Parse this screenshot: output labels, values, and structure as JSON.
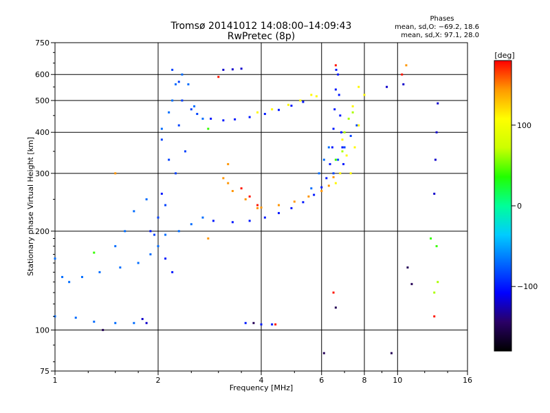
{
  "chart_data": {
    "type": "scatter",
    "title": "Tromsø 20141012 14:08:00–14:09:43",
    "subtitle": "RwPretec (8p)",
    "xlabel": "Frequency [MHz]",
    "ylabel": "Stationary phase Virtual Height [km]",
    "x_scale": "log",
    "y_scale": "log",
    "xlim": [
      1,
      16
    ],
    "ylim": [
      75,
      750
    ],
    "x_ticks": [
      1,
      2,
      4,
      6,
      8,
      10,
      16
    ],
    "x_tick_labels": [
      "1",
      "2",
      "4",
      "6",
      "8",
      "10",
      "16"
    ],
    "y_ticks": [
      75,
      100,
      200,
      300,
      400,
      500,
      600,
      750
    ],
    "y_tick_labels": [
      "75",
      "100",
      "200",
      "300",
      "400",
      "500",
      "600",
      "750"
    ],
    "grid": true,
    "legend": {
      "title": "Phases",
      "lines": [
        "mean, sd,O: −69.2, 18.6",
        "mean, sd,X:  97.1, 28.0"
      ],
      "placement": "top-right"
    },
    "colorbar": {
      "label": "[deg]",
      "range": [
        -180,
        180
      ],
      "ticks": [
        100,
        0,
        -100
      ],
      "tick_labels": [
        "100",
        "0",
        "−100"
      ],
      "colors": [
        "#000000",
        "#2a0066",
        "#0000ff",
        "#0066ff",
        "#00ccff",
        "#00ff99",
        "#22ff00",
        "#ccff00",
        "#ffff00",
        "#ff9900",
        "#ff0000"
      ]
    },
    "series": [
      {
        "phase": -150,
        "points": [
          [
            1.38,
            100
          ],
          [
            3.8,
            105
          ],
          [
            6.1,
            85
          ],
          [
            6.6,
            117
          ],
          [
            9.6,
            85
          ],
          [
            11.0,
            138
          ],
          [
            10.7,
            155
          ]
        ]
      },
      {
        "phase": -120,
        "points": [
          [
            1.8,
            108
          ],
          [
            1.85,
            105
          ],
          [
            3.1,
            620
          ],
          [
            3.3,
            622
          ],
          [
            3.5,
            625
          ],
          [
            9.3,
            550
          ],
          [
            10.4,
            560
          ],
          [
            13.1,
            490
          ],
          [
            13.0,
            400
          ],
          [
            12.9,
            330
          ],
          [
            12.8,
            260
          ]
        ]
      },
      {
        "phase": -100,
        "points": [
          [
            2.85,
            440
          ],
          [
            3.1,
            435
          ],
          [
            3.35,
            438
          ],
          [
            3.7,
            445
          ],
          [
            4.1,
            455
          ],
          [
            4.5,
            468
          ],
          [
            4.9,
            482
          ],
          [
            5.3,
            495
          ],
          [
            2.9,
            215
          ],
          [
            3.3,
            213
          ],
          [
            3.7,
            215
          ],
          [
            4.1,
            220
          ],
          [
            4.5,
            227
          ],
          [
            4.9,
            235
          ],
          [
            5.3,
            245
          ],
          [
            5.7,
            258
          ],
          [
            6.0,
            272
          ],
          [
            6.2,
            290
          ],
          [
            6.35,
            320
          ],
          [
            6.45,
            360
          ],
          [
            6.5,
            410
          ],
          [
            6.55,
            470
          ],
          [
            6.6,
            540
          ],
          [
            6.62,
            620
          ],
          [
            6.7,
            600
          ],
          [
            6.75,
            520
          ],
          [
            6.8,
            450
          ],
          [
            6.85,
            400
          ],
          [
            6.9,
            360
          ],
          [
            6.95,
            320
          ],
          [
            3.6,
            105
          ],
          [
            4.0,
            104
          ],
          [
            4.3,
            104
          ],
          [
            2.1,
            165
          ],
          [
            2.2,
            150
          ],
          [
            1.9,
            200
          ],
          [
            2.05,
            260
          ]
        ]
      },
      {
        "phase": -85,
        "points": [
          [
            2.2,
            620
          ],
          [
            2.3,
            570
          ],
          [
            2.35,
            500
          ],
          [
            2.5,
            470
          ],
          [
            2.6,
            455
          ],
          [
            2.05,
            380
          ],
          [
            2.15,
            330
          ],
          [
            2.25,
            300
          ],
          [
            2.1,
            240
          ],
          [
            2.0,
            220
          ],
          [
            1.95,
            195
          ],
          [
            2.3,
            420
          ],
          [
            2.4,
            350
          ],
          [
            6.5,
            300
          ],
          [
            6.7,
            330
          ],
          [
            7.0,
            360
          ],
          [
            7.3,
            390
          ],
          [
            7.6,
            420
          ]
        ]
      },
      {
        "phase": -70,
        "points": [
          [
            1.0,
            165
          ],
          [
            1.05,
            145
          ],
          [
            1.1,
            140
          ],
          [
            1.2,
            145
          ],
          [
            1.35,
            150
          ],
          [
            1.55,
            155
          ],
          [
            1.75,
            160
          ],
          [
            1.9,
            170
          ],
          [
            2.0,
            180
          ],
          [
            2.1,
            195
          ],
          [
            1.85,
            250
          ],
          [
            1.7,
            230
          ],
          [
            1.6,
            200
          ],
          [
            1.5,
            180
          ],
          [
            2.05,
            410
          ],
          [
            2.15,
            460
          ],
          [
            2.2,
            500
          ],
          [
            2.25,
            560
          ],
          [
            2.35,
            600
          ],
          [
            2.45,
            560
          ],
          [
            2.55,
            480
          ],
          [
            2.7,
            440
          ],
          [
            1.0,
            110
          ],
          [
            1.15,
            109
          ],
          [
            1.3,
            106
          ],
          [
            1.5,
            105
          ],
          [
            1.7,
            105
          ],
          [
            2.3,
            200
          ],
          [
            2.5,
            210
          ],
          [
            2.7,
            220
          ],
          [
            5.6,
            270
          ],
          [
            5.9,
            300
          ],
          [
            6.1,
            330
          ],
          [
            6.3,
            360
          ]
        ]
      },
      {
        "phase": 110,
        "points": [
          [
            3.9,
            460
          ],
          [
            4.3,
            470
          ],
          [
            4.8,
            485
          ],
          [
            5.2,
            500
          ],
          [
            5.6,
            520
          ],
          [
            6.9,
            380
          ],
          [
            7.1,
            340
          ],
          [
            7.3,
            300
          ],
          [
            7.5,
            360
          ],
          [
            7.7,
            420
          ],
          [
            6.6,
            280
          ],
          [
            6.8,
            300
          ],
          [
            5.8,
            515
          ],
          [
            7.4,
            480
          ],
          [
            7.7,
            550
          ],
          [
            8.0,
            520
          ]
        ]
      },
      {
        "phase": 145,
        "points": [
          [
            4.0,
            236
          ],
          [
            4.5,
            240
          ],
          [
            5.0,
            246
          ],
          [
            5.5,
            255
          ],
          [
            6.0,
            265
          ],
          [
            6.3,
            275
          ],
          [
            6.5,
            292
          ],
          [
            3.3,
            265
          ],
          [
            3.6,
            250
          ],
          [
            3.9,
            235
          ],
          [
            3.1,
            290
          ],
          [
            3.2,
            280
          ],
          [
            1.5,
            300
          ],
          [
            3.2,
            320
          ],
          [
            2.8,
            190
          ],
          [
            10.6,
            640
          ]
        ]
      },
      {
        "phase": 175,
        "points": [
          [
            4.4,
            104
          ],
          [
            3.5,
            270
          ],
          [
            3.7,
            255
          ],
          [
            3.9,
            240
          ],
          [
            6.6,
            640
          ],
          [
            6.5,
            130
          ],
          [
            10.3,
            600
          ],
          [
            12.8,
            110
          ],
          [
            3.0,
            590
          ]
        ]
      },
      {
        "phase": 40,
        "points": [
          [
            2.8,
            410
          ],
          [
            6.6,
            330
          ],
          [
            13.0,
            180
          ],
          [
            12.5,
            190
          ],
          [
            1.3,
            172
          ]
        ]
      },
      {
        "phase": 65,
        "points": [
          [
            7.0,
            400
          ],
          [
            7.2,
            440
          ],
          [
            7.4,
            460
          ],
          [
            6.9,
            350
          ],
          [
            13.1,
            140
          ],
          [
            12.8,
            130
          ]
        ]
      }
    ]
  }
}
